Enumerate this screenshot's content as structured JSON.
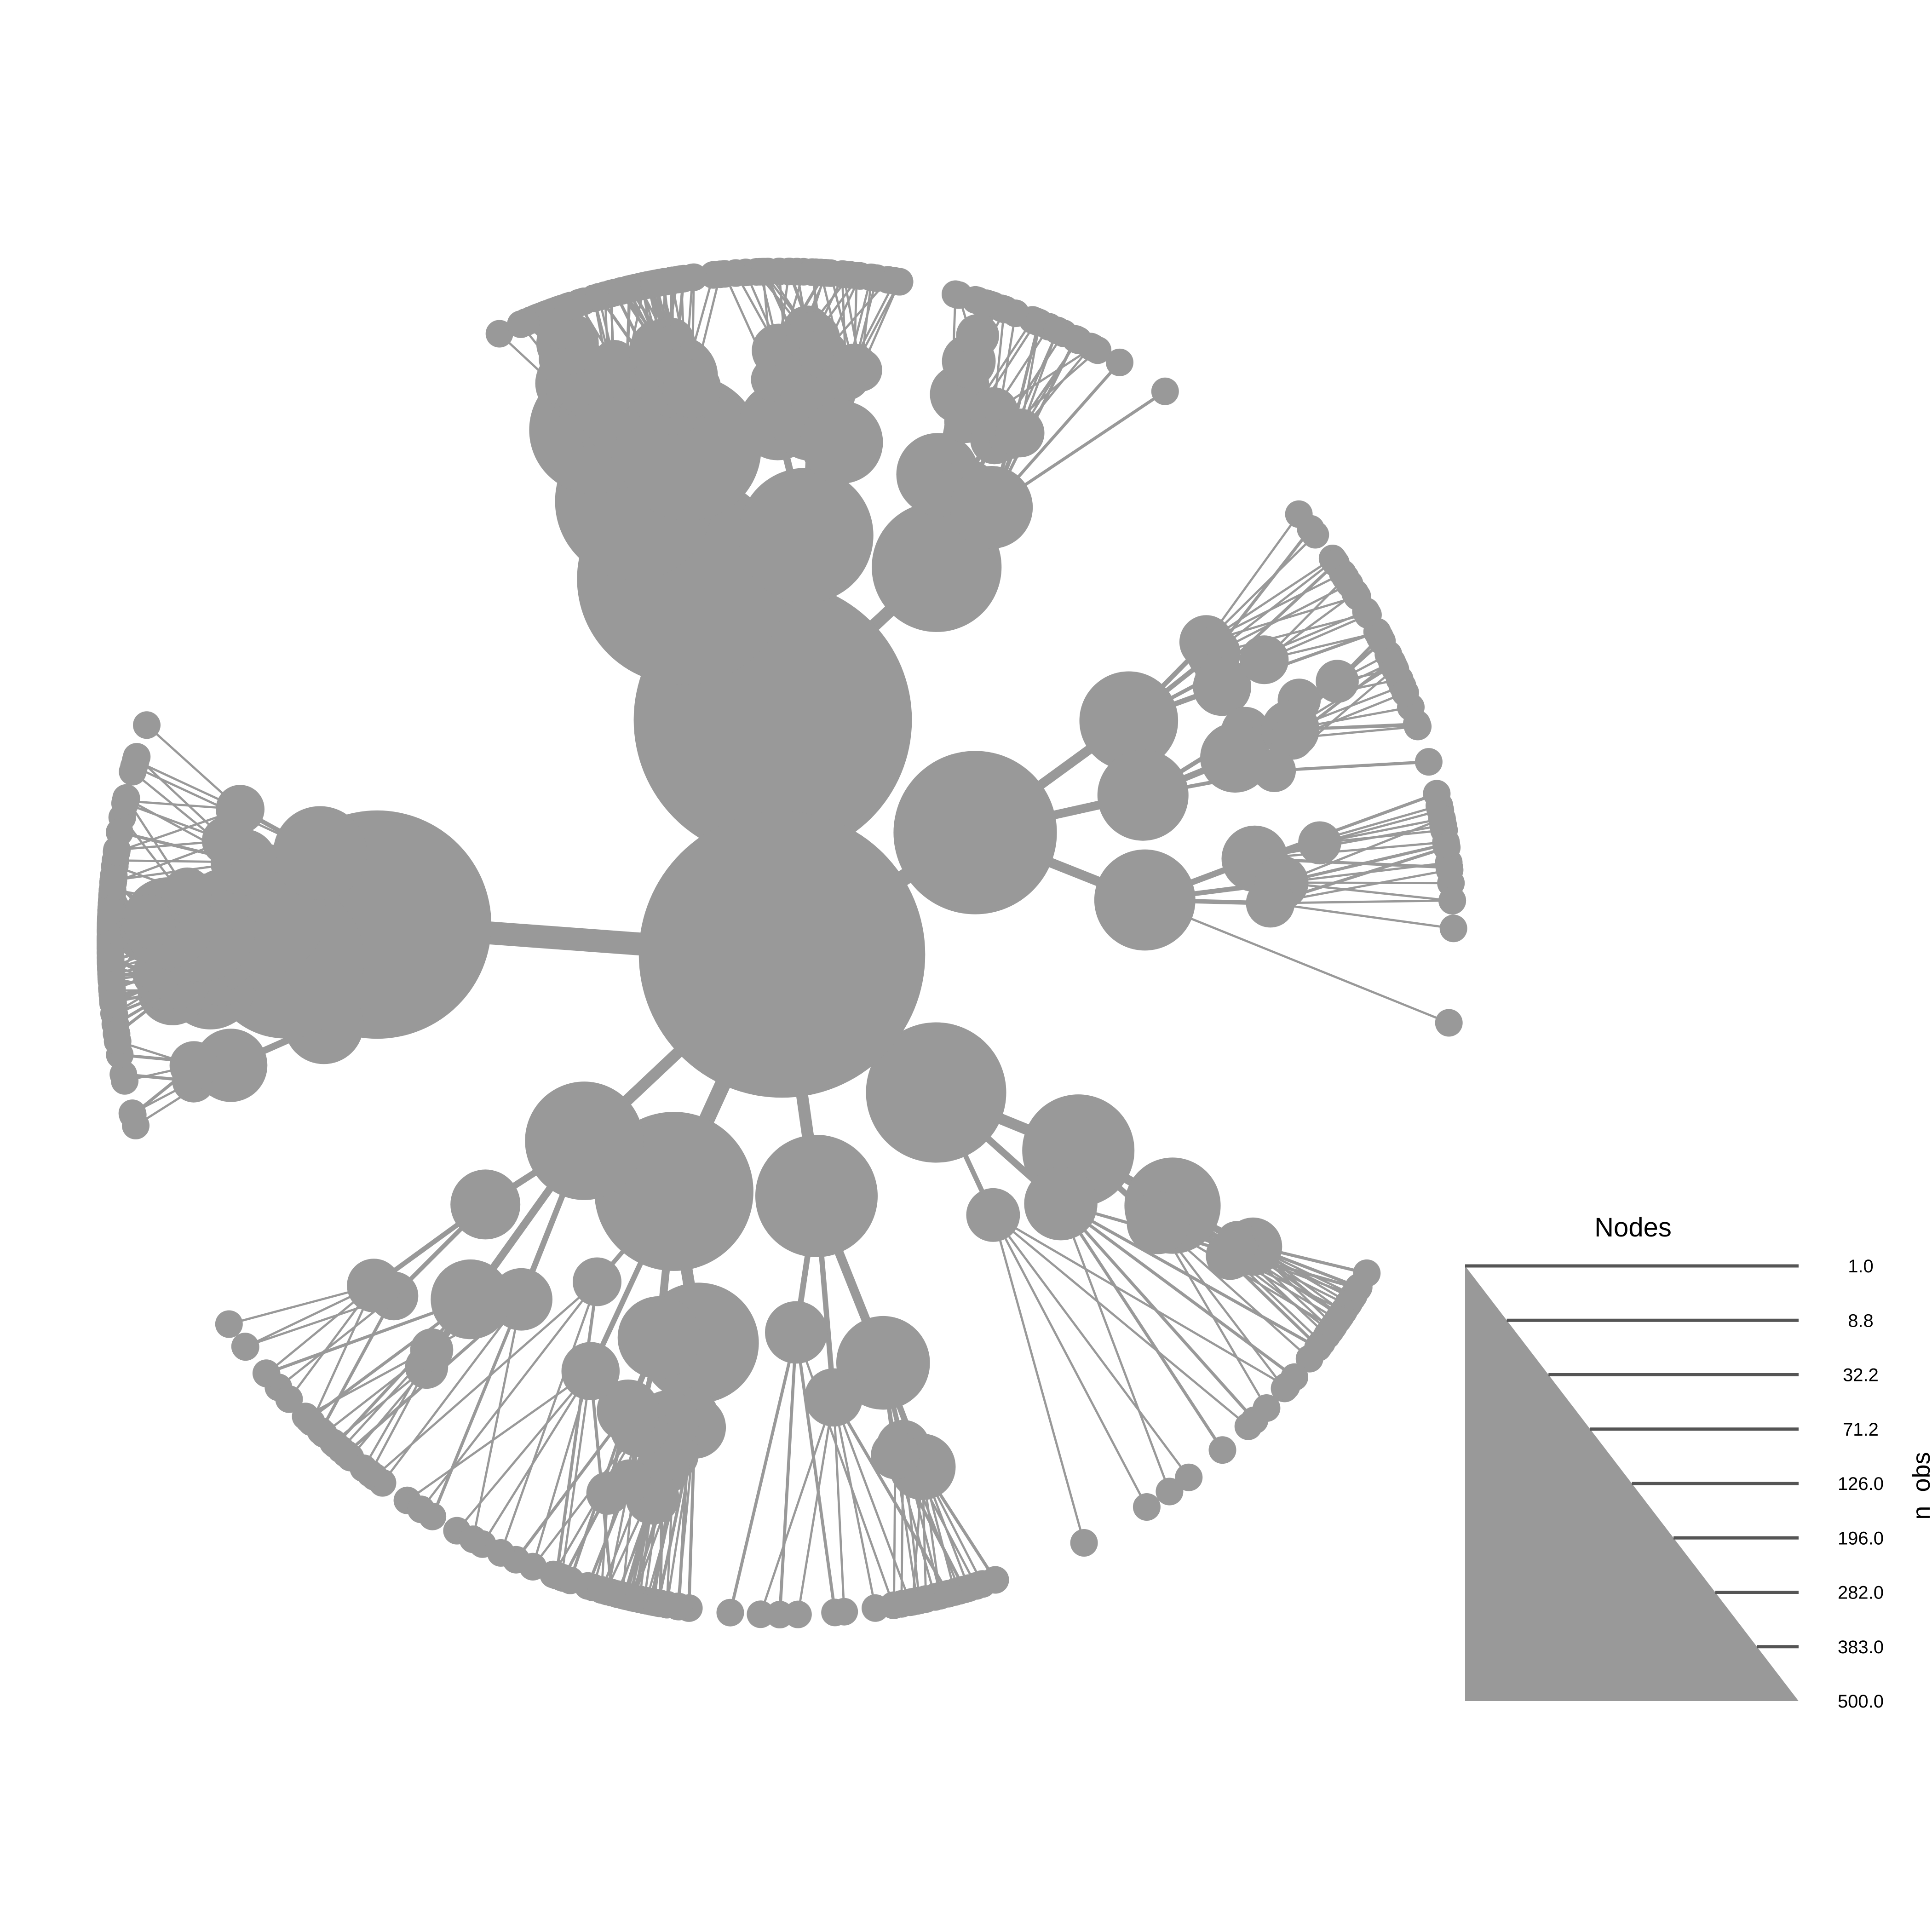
{
  "diagram": {
    "type": "heat-tree",
    "node_color": "#999999",
    "background": "#ffffff",
    "root_count": 500
  },
  "legend": {
    "title": "Nodes",
    "axis_label": "n_obs",
    "tick_labels": [
      "1.0",
      "8.8",
      "32.2",
      "71.2",
      "126.0",
      "196.0",
      "282.0",
      "383.0",
      "500.0"
    ],
    "tick_values": [
      1.0,
      8.8,
      32.2,
      71.2,
      126.0,
      196.0,
      282.0,
      383.0,
      500.0
    ],
    "range": [
      1,
      500
    ],
    "fill_color": "#999999",
    "tick_color": "#555555"
  }
}
